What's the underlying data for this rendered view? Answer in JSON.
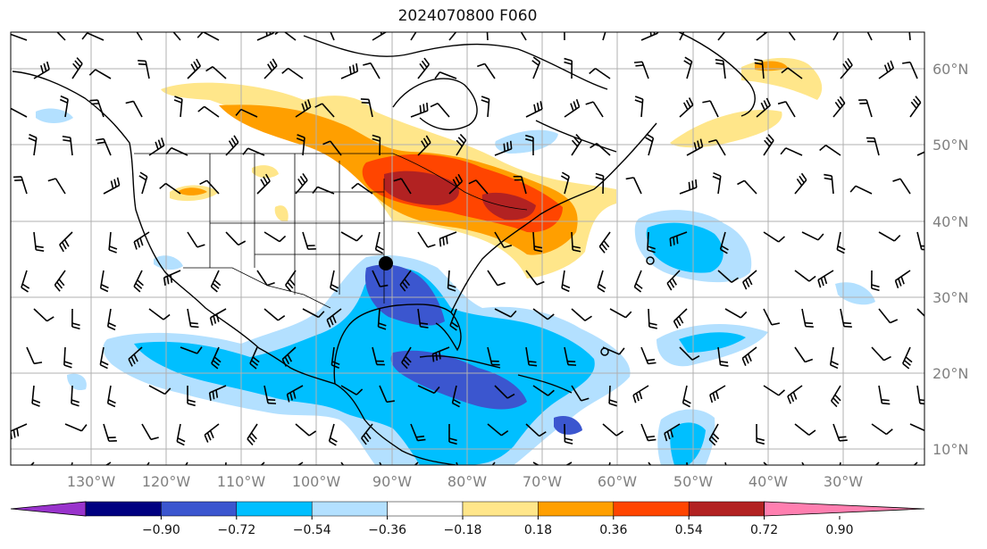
{
  "title": "2024070800 F060",
  "lon_labels": [
    "130°W",
    "120°W",
    "110°W",
    "100°W",
    "90°W",
    "80°W",
    "70°W",
    "60°W",
    "50°W",
    "40°W",
    "30°W"
  ],
  "lat_labels": [
    "60°N",
    "50°N",
    "40°N",
    "30°N",
    "20°N",
    "10°N"
  ],
  "colorbar": {
    "colors": [
      "#9933cc",
      "#000080",
      "#3b56cf",
      "#00bfff",
      "#b3e0ff",
      "#ffffff",
      "#ffe68a",
      "#ff9f00",
      "#ff4500",
      "#b22222",
      "#ff7fb0"
    ],
    "tick_labels": [
      "−0.90",
      "−0.72",
      "−0.54",
      "−0.36",
      "−0.18",
      "0.18",
      "0.36",
      "0.54",
      "0.72",
      "0.90"
    ]
  },
  "map_colors": {
    "land": "#000000",
    "grid": "#b0b0b0",
    "frame": "#000000"
  }
}
